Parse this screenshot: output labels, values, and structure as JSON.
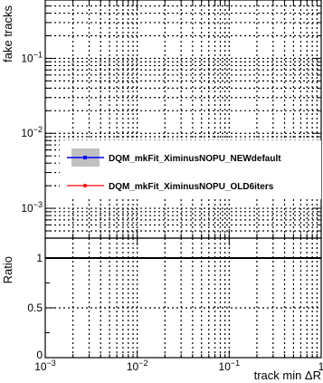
{
  "chart_data": [
    {
      "type": "line",
      "panel": "main",
      "xlabel": "track min ΔR",
      "ylabel": "fake tracks",
      "xscale": "log",
      "yscale": "log",
      "xlim": [
        0.001,
        1
      ],
      "ylim": [
        0.0004,
        0.6
      ],
      "grid": true,
      "legend_position": "middle-right",
      "y_ticks": [
        {
          "value": 0.001,
          "base": "10",
          "exp": "−3"
        },
        {
          "value": 0.01,
          "base": "10",
          "exp": "−2"
        },
        {
          "value": 0.1,
          "base": "10",
          "exp": "−1"
        }
      ],
      "series": [
        {
          "name": "DQM_mkFit_XiminusNOPU_NEWdefault",
          "color": "#0000ff",
          "marker": "square",
          "values": []
        },
        {
          "name": "DQM_mkFit_XiminusNOPU_OLD6iters",
          "color": "#ff0000",
          "marker": "circle",
          "values": []
        }
      ]
    },
    {
      "type": "line",
      "panel": "ratio",
      "xlabel": "track min ΔR",
      "ylabel": "Ratio",
      "xscale": "log",
      "xlim": [
        0.001,
        1
      ],
      "ylim": [
        0,
        1.2
      ],
      "grid": true,
      "reference_line": 1,
      "x_ticks": [
        {
          "value": 0.001,
          "base": "10",
          "exp": "−3"
        },
        {
          "value": 0.01,
          "base": "10",
          "exp": "−2"
        },
        {
          "value": 0.1,
          "base": "10",
          "exp": "−1"
        },
        {
          "value": 1,
          "base": "1",
          "exp": ""
        }
      ],
      "y_ticks": [
        {
          "value": 0,
          "label": "0"
        },
        {
          "value": 0.5,
          "label": "0.5"
        },
        {
          "value": 1,
          "label": "1"
        }
      ],
      "series": []
    }
  ]
}
